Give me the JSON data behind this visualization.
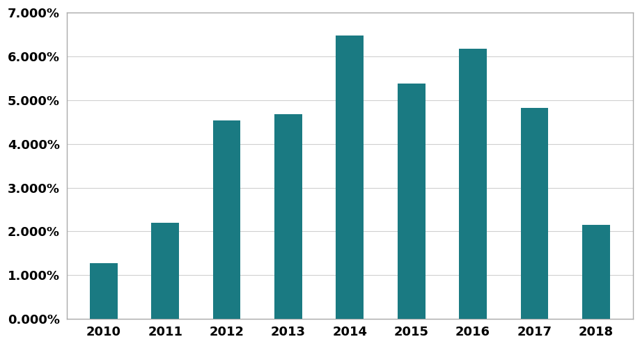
{
  "years": [
    "2010",
    "2011",
    "2012",
    "2013",
    "2014",
    "2015",
    "2016",
    "2017",
    "2018"
  ],
  "values": [
    0.0128,
    0.022,
    0.0453,
    0.0468,
    0.0648,
    0.0538,
    0.0618,
    0.0482,
    0.0215
  ],
  "bar_color": "#1a7a82",
  "background_color": "#ffffff",
  "plot_bg_color": "#ffffff",
  "ylim": [
    0,
    0.07
  ],
  "yticks": [
    0.0,
    0.01,
    0.02,
    0.03,
    0.04,
    0.05,
    0.06,
    0.07
  ],
  "grid_color": "#d0d0d0",
  "tick_label_fontsize": 13,
  "border_color": "#aaaaaa",
  "bar_width": 0.45
}
